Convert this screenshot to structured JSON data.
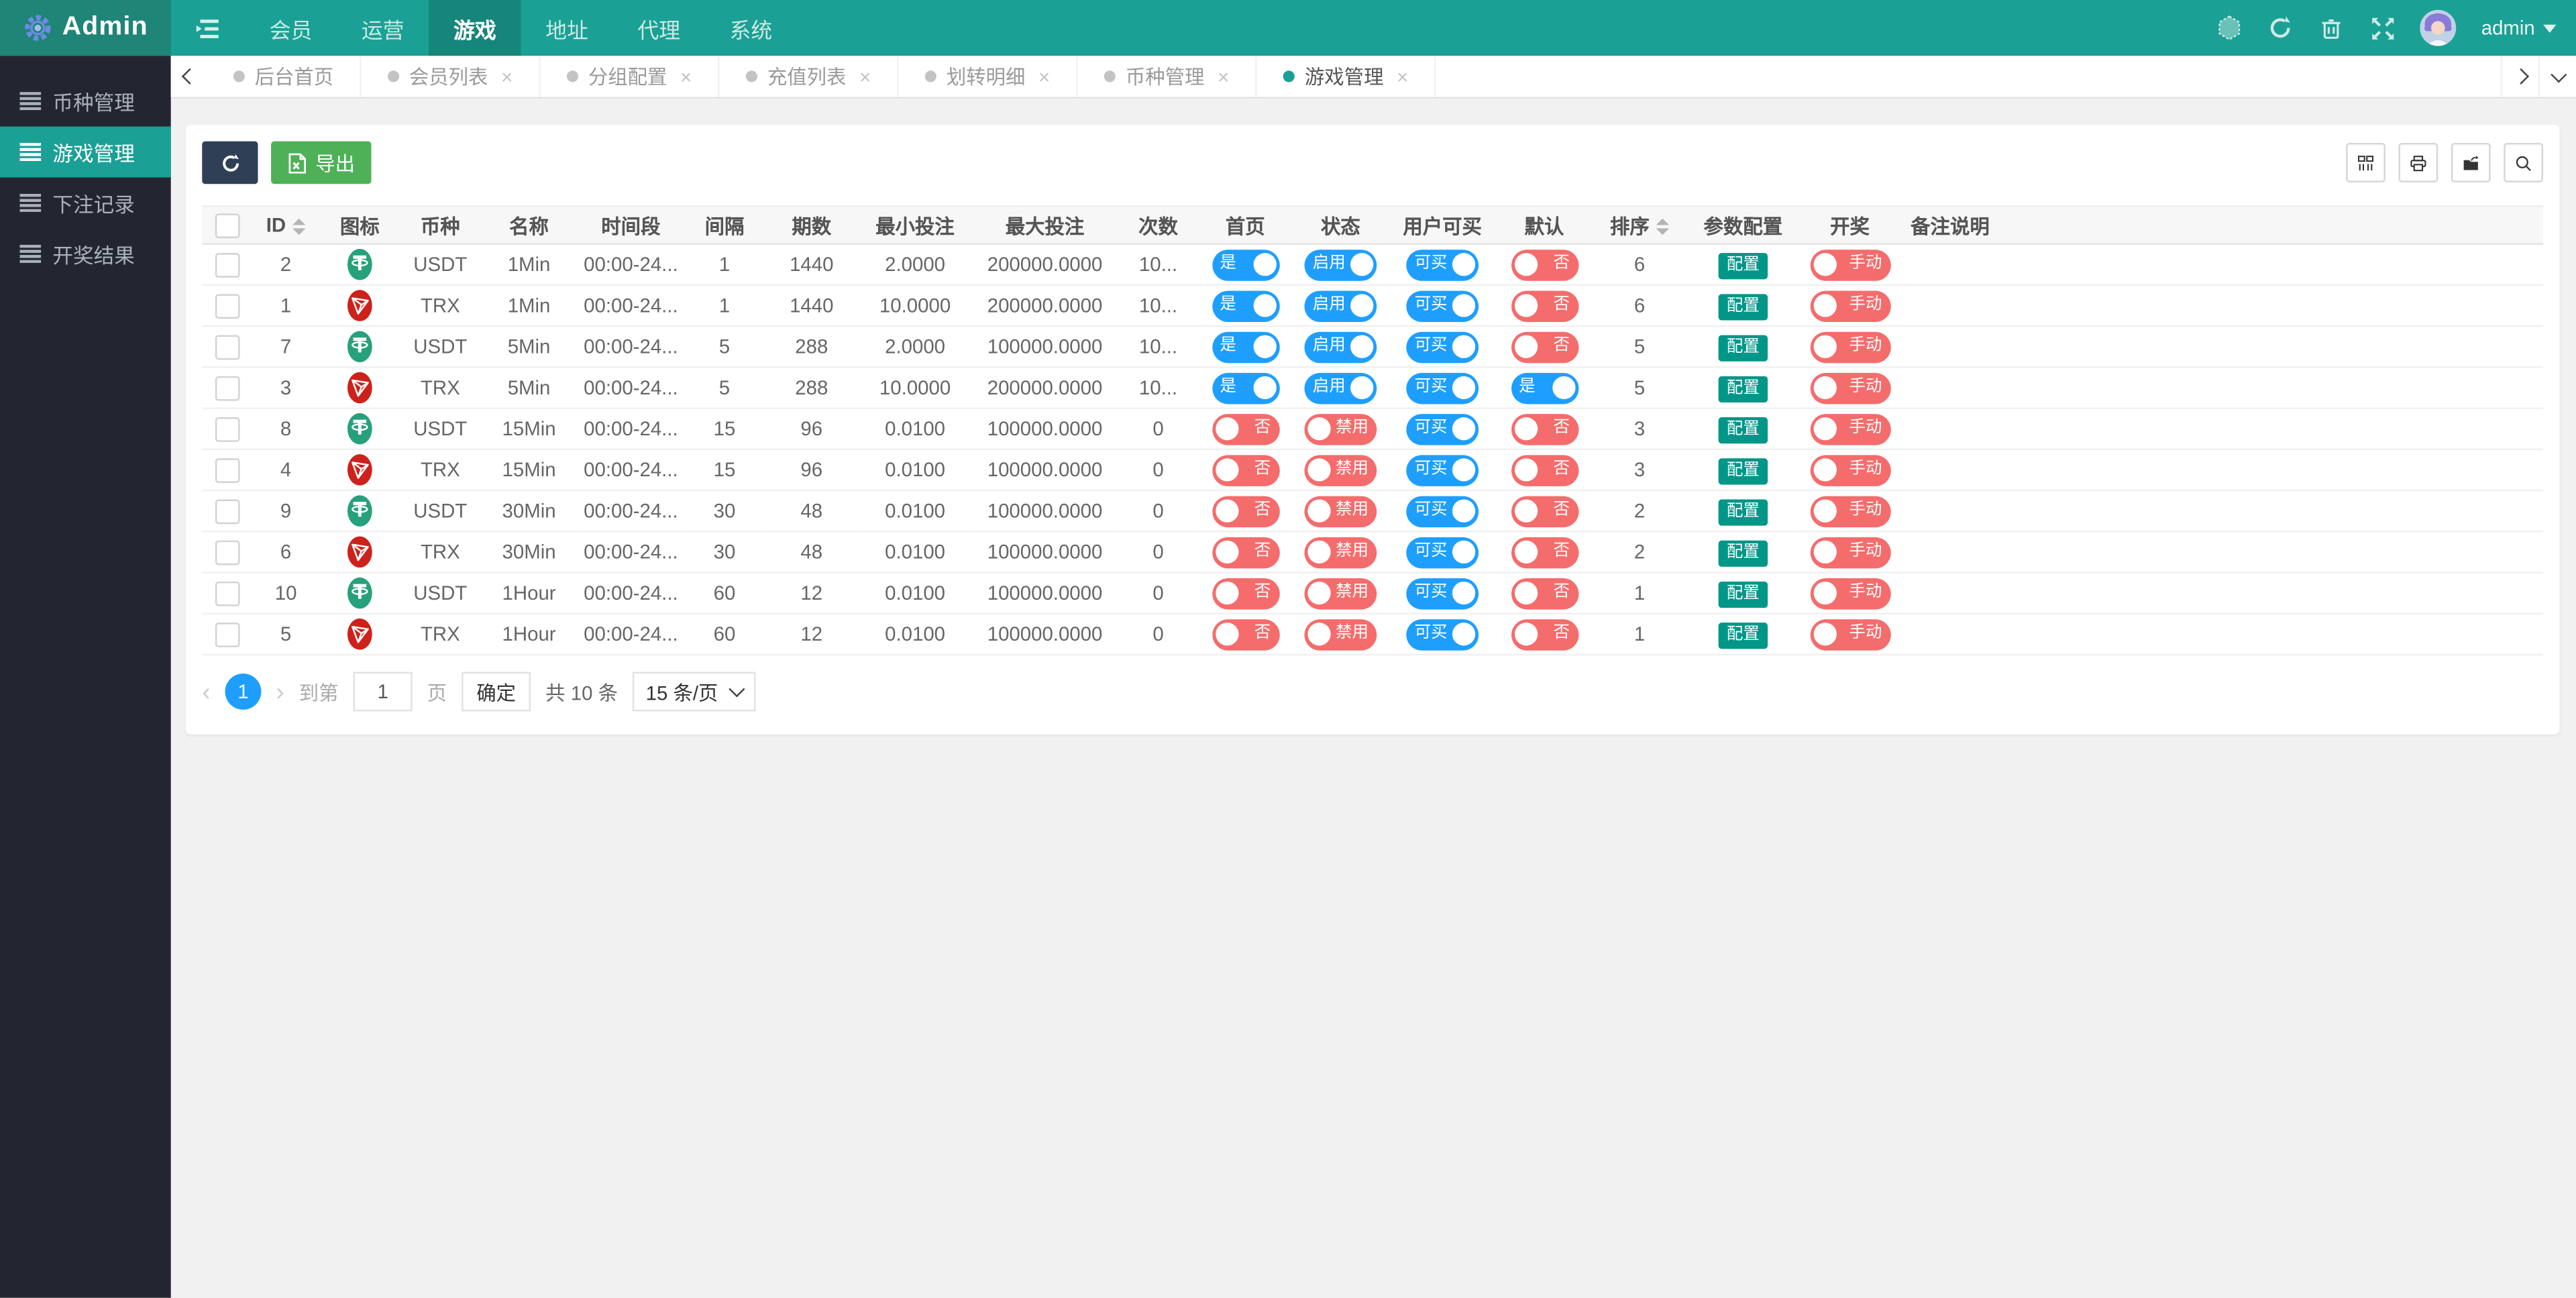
{
  "navbar": {
    "brand": "Admin",
    "menu": [
      "会员",
      "运营",
      "游戏",
      "地址",
      "代理",
      "系统"
    ],
    "active_index": 2,
    "username": "admin",
    "icons": [
      "hexagon-icon",
      "refresh-icon",
      "trash-icon",
      "fullscreen-icon"
    ]
  },
  "sidebar": {
    "items": [
      {
        "label": "币种管理",
        "active": false
      },
      {
        "label": "游戏管理",
        "active": true
      },
      {
        "label": "下注记录",
        "active": false
      },
      {
        "label": "开奖结果",
        "active": false
      }
    ]
  },
  "tabs": [
    {
      "label": "后台首页",
      "active": false,
      "closable": false
    },
    {
      "label": "会员列表",
      "active": false,
      "closable": true
    },
    {
      "label": "分组配置",
      "active": false,
      "closable": true
    },
    {
      "label": "充值列表",
      "active": false,
      "closable": true
    },
    {
      "label": "划转明细",
      "active": false,
      "closable": true
    },
    {
      "label": "币种管理",
      "active": false,
      "closable": true
    },
    {
      "label": "游戏管理",
      "active": true,
      "closable": true
    }
  ],
  "toolbar": {
    "export_label": "导出",
    "right_icons": [
      "columns-icon",
      "print-icon",
      "export-file-icon",
      "search-icon"
    ]
  },
  "table": {
    "headers": [
      {
        "label": "ID",
        "sortable": true
      },
      {
        "label": "图标",
        "sortable": false
      },
      {
        "label": "币种",
        "sortable": false
      },
      {
        "label": "名称",
        "sortable": false
      },
      {
        "label": "时间段",
        "sortable": false
      },
      {
        "label": "间隔",
        "sortable": false
      },
      {
        "label": "期数",
        "sortable": false
      },
      {
        "label": "最小投注",
        "sortable": false
      },
      {
        "label": "最大投注",
        "sortable": false
      },
      {
        "label": "次数",
        "sortable": false
      },
      {
        "label": "首页",
        "sortable": false
      },
      {
        "label": "状态",
        "sortable": false
      },
      {
        "label": "用户可买",
        "sortable": false
      },
      {
        "label": "默认",
        "sortable": false
      },
      {
        "label": "排序",
        "sortable": true
      },
      {
        "label": "参数配置",
        "sortable": false
      },
      {
        "label": "开奖",
        "sortable": false
      },
      {
        "label": "备注说明",
        "sortable": false
      }
    ],
    "config_label": "配置",
    "rows": [
      {
        "id": "2",
        "coin": "USDT",
        "coin_icon": "usdt-coin-icon",
        "name": "1Min",
        "time": "00:00-24...",
        "interval": "1",
        "periods": "1440",
        "min": "2.0000",
        "max": "200000.0000",
        "times": "10...",
        "home": {
          "on": true,
          "label": "是"
        },
        "status": {
          "on": true,
          "label": "启用"
        },
        "buyable": {
          "on": true,
          "label": "可买"
        },
        "default": {
          "on": false,
          "label": "否"
        },
        "sort": "6",
        "draw": {
          "on": false,
          "label": "手动"
        },
        "note": ""
      },
      {
        "id": "1",
        "coin": "TRX",
        "coin_icon": "trx-coin-icon",
        "name": "1Min",
        "time": "00:00-24...",
        "interval": "1",
        "periods": "1440",
        "min": "10.0000",
        "max": "200000.0000",
        "times": "10...",
        "home": {
          "on": true,
          "label": "是"
        },
        "status": {
          "on": true,
          "label": "启用"
        },
        "buyable": {
          "on": true,
          "label": "可买"
        },
        "default": {
          "on": false,
          "label": "否"
        },
        "sort": "6",
        "draw": {
          "on": false,
          "label": "手动"
        },
        "note": ""
      },
      {
        "id": "7",
        "coin": "USDT",
        "coin_icon": "usdt-coin-icon",
        "name": "5Min",
        "time": "00:00-24...",
        "interval": "5",
        "periods": "288",
        "min": "2.0000",
        "max": "100000.0000",
        "times": "10...",
        "home": {
          "on": true,
          "label": "是"
        },
        "status": {
          "on": true,
          "label": "启用"
        },
        "buyable": {
          "on": true,
          "label": "可买"
        },
        "default": {
          "on": false,
          "label": "否"
        },
        "sort": "5",
        "draw": {
          "on": false,
          "label": "手动"
        },
        "note": ""
      },
      {
        "id": "3",
        "coin": "TRX",
        "coin_icon": "trx-coin-icon",
        "name": "5Min",
        "time": "00:00-24...",
        "interval": "5",
        "periods": "288",
        "min": "10.0000",
        "max": "200000.0000",
        "times": "10...",
        "home": {
          "on": true,
          "label": "是"
        },
        "status": {
          "on": true,
          "label": "启用"
        },
        "buyable": {
          "on": true,
          "label": "可买"
        },
        "default": {
          "on": true,
          "label": "是"
        },
        "sort": "5",
        "draw": {
          "on": false,
          "label": "手动"
        },
        "note": ""
      },
      {
        "id": "8",
        "coin": "USDT",
        "coin_icon": "usdt-coin-icon",
        "name": "15Min",
        "time": "00:00-24...",
        "interval": "15",
        "periods": "96",
        "min": "0.0100",
        "max": "100000.0000",
        "times": "0",
        "home": {
          "on": false,
          "label": "否"
        },
        "status": {
          "on": false,
          "label": "禁用"
        },
        "buyable": {
          "on": true,
          "label": "可买"
        },
        "default": {
          "on": false,
          "label": "否"
        },
        "sort": "3",
        "draw": {
          "on": false,
          "label": "手动"
        },
        "note": ""
      },
      {
        "id": "4",
        "coin": "TRX",
        "coin_icon": "trx-coin-icon",
        "name": "15Min",
        "time": "00:00-24...",
        "interval": "15",
        "periods": "96",
        "min": "0.0100",
        "max": "100000.0000",
        "times": "0",
        "home": {
          "on": false,
          "label": "否"
        },
        "status": {
          "on": false,
          "label": "禁用"
        },
        "buyable": {
          "on": true,
          "label": "可买"
        },
        "default": {
          "on": false,
          "label": "否"
        },
        "sort": "3",
        "draw": {
          "on": false,
          "label": "手动"
        },
        "note": ""
      },
      {
        "id": "9",
        "coin": "USDT",
        "coin_icon": "usdt-coin-icon",
        "name": "30Min",
        "time": "00:00-24...",
        "interval": "30",
        "periods": "48",
        "min": "0.0100",
        "max": "100000.0000",
        "times": "0",
        "home": {
          "on": false,
          "label": "否"
        },
        "status": {
          "on": false,
          "label": "禁用"
        },
        "buyable": {
          "on": true,
          "label": "可买"
        },
        "default": {
          "on": false,
          "label": "否"
        },
        "sort": "2",
        "draw": {
          "on": false,
          "label": "手动"
        },
        "note": ""
      },
      {
        "id": "6",
        "coin": "TRX",
        "coin_icon": "trx-coin-icon",
        "name": "30Min",
        "time": "00:00-24...",
        "interval": "30",
        "periods": "48",
        "min": "0.0100",
        "max": "100000.0000",
        "times": "0",
        "home": {
          "on": false,
          "label": "否"
        },
        "status": {
          "on": false,
          "label": "禁用"
        },
        "buyable": {
          "on": true,
          "label": "可买"
        },
        "default": {
          "on": false,
          "label": "否"
        },
        "sort": "2",
        "draw": {
          "on": false,
          "label": "手动"
        },
        "note": ""
      },
      {
        "id": "10",
        "coin": "USDT",
        "coin_icon": "usdt-coin-icon",
        "name": "1Hour",
        "time": "00:00-24...",
        "interval": "60",
        "periods": "12",
        "min": "0.0100",
        "max": "100000.0000",
        "times": "0",
        "home": {
          "on": false,
          "label": "否"
        },
        "status": {
          "on": false,
          "label": "禁用"
        },
        "buyable": {
          "on": true,
          "label": "可买"
        },
        "default": {
          "on": false,
          "label": "否"
        },
        "sort": "1",
        "draw": {
          "on": false,
          "label": "手动"
        },
        "note": ""
      },
      {
        "id": "5",
        "coin": "TRX",
        "coin_icon": "trx-coin-icon",
        "name": "1Hour",
        "time": "00:00-24...",
        "interval": "60",
        "periods": "12",
        "min": "0.0100",
        "max": "100000.0000",
        "times": "0",
        "home": {
          "on": false,
          "label": "否"
        },
        "status": {
          "on": false,
          "label": "禁用"
        },
        "buyable": {
          "on": true,
          "label": "可买"
        },
        "default": {
          "on": false,
          "label": "否"
        },
        "sort": "1",
        "draw": {
          "on": false,
          "label": "手动"
        },
        "note": ""
      }
    ]
  },
  "pagination": {
    "page": "1",
    "goto_prefix": "到第",
    "goto_value": "1",
    "goto_suffix": "页",
    "confirm": "确定",
    "total": "共 10 条",
    "page_size": "15 条/页"
  },
  "colors": {
    "header_teal": "#1aa094",
    "sidebar_dark": "#232630",
    "toggle_on_blue": "#1e9fff",
    "toggle_off_red": "#f56c6c",
    "config_teal": "#009688",
    "export_green": "#4fb157",
    "refresh_dark": "#2f4056",
    "usdt_green": "#26a17b",
    "trx_red": "#ce211b"
  }
}
